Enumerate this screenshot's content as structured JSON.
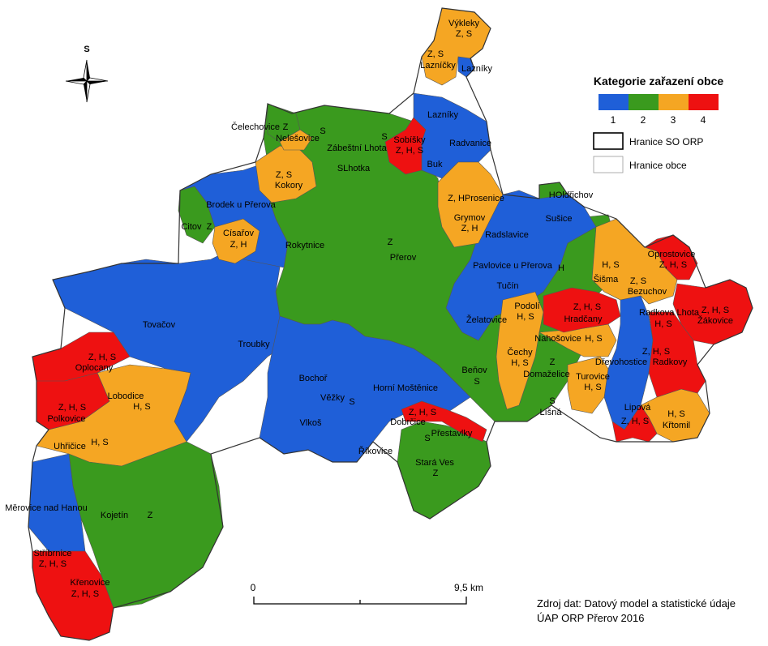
{
  "colors": {
    "cat1": "#1f5fd8",
    "cat2": "#3a9a1e",
    "cat3": "#f5a623",
    "cat4": "#ee1111",
    "border": "#555555"
  },
  "legend": {
    "title": "Kategorie zařazení obce",
    "categories": [
      "1",
      "2",
      "3",
      "4"
    ],
    "orp_boundary": "Hranice SO ORP",
    "municipality_boundary": "Hranice obce"
  },
  "north_arrow": {
    "label": "S",
    "icon": "compass-rose-icon"
  },
  "scale_bar": {
    "start": "0",
    "end": "9,5 km"
  },
  "source": {
    "line1": "Zdroj dat: Datový model a statistické údaje",
    "line2": "ÚAP ORP Přerov 2016"
  },
  "labels": {
    "vykleky": "Výkleky",
    "vykleky_code": "Z, S",
    "laznicky_code": "Z, S",
    "laznicky": "Lazníčky",
    "lazniky_top": "Lazníky",
    "lazniky": "Lazníky",
    "celechovice": "Čelechovice",
    "celechovice_code": "Z",
    "nelesovice": "Nelešovice",
    "nelesovice_code": "S",
    "zabestni": "Zábeštní Lhota",
    "zabestni_code": "S",
    "sobisky": "Sobíšky",
    "sobisky_code": "Z, H, S",
    "radvanice": "Radvanice",
    "buk": "Buk",
    "kokory_code": "Z, S",
    "kokory": "Kokory",
    "slhotka": "SLhotka",
    "prosenice": "Z, HProsenice",
    "olbrichov": "HOldřichov",
    "brodek": "Brodek u Přerova",
    "citov": "Citov",
    "citov_code": "Z",
    "grymov": "Grymov",
    "grymov_code": "Z, H",
    "susice": "Sušice",
    "radslavice": "Radslavice",
    "cisarov": "Císařov",
    "cisarov_code": "Z, H",
    "rokytnice": "Rokytnice",
    "prerov_code": "Z",
    "prerov": "Přerov",
    "pavlovice": "Pavlovice u Přerova",
    "pavlovice_code": "H",
    "oprostovice": "Oprostovice",
    "oprostovice_code": "Z, H, S",
    "sisma_code": "H, S",
    "sisma": "Šišma",
    "bezuchov_code": "Z, S",
    "bezuchov": "Bezuchov",
    "tucin": "Tučín",
    "tovacov": "Tovačov",
    "podoli": "Podolí",
    "podoli_code": "H, S",
    "hradcany_code": "Z, H, S",
    "hradcany": "Hradčany",
    "radkova_lhota": "Radkova Lhota",
    "radkova_lhota_code": "H, S",
    "zakovice_code": "Z, H, S",
    "zakovice": "Žákovice",
    "zelatovice": "Želatovice",
    "nahosovice": "Nahošovice",
    "nahosovice_code": "H, S",
    "troubky": "Troubky",
    "cechy": "Čechy",
    "cechy_code": "H, S",
    "domazelice_code": "Z",
    "domazelice": "Domaželice",
    "drevohostice": "Dřevohostice",
    "radkovy_code": "Z, H, S",
    "radkovy": "Radkovy",
    "oplocany_code": "Z, H, S",
    "oplocany": "Oplocany",
    "bochor": "Bochoř",
    "benov": "Beňov",
    "benov_code": "S",
    "turovice": "Turovice",
    "turovice_code": "H, S",
    "lobodice": "Lobodice",
    "lobodice_code": "H, S",
    "horni_mostenice": "Horní Moštěnice",
    "vezky": "Věžky",
    "vezky_code": "S",
    "lisna_code": "S",
    "lisna": "Líšná",
    "lipova": "Lipová",
    "lipova_code": "Z, H, S",
    "krtomil_code": "H, S",
    "krtomil": "Křtomil",
    "polkovice_code": "Z, H, S",
    "polkovice": "Polkovice",
    "dobrcice_code": "Z, H, S",
    "dobrcice": "Dobrčice",
    "vlkos": "Vlkoš",
    "prestavlky": "Přestavlky",
    "prestavlky_code": "S",
    "uhricice": "Uhřičice",
    "uhricice_code": "H, S",
    "rikovice": "Říkovice",
    "stara_ves": "Stará Ves",
    "stara_ves_code": "Z",
    "merovice": "Měrovice nad Hanou",
    "kojetin": "Kojetín",
    "kojetin_code": "Z",
    "stribrnice": "Stříbrnice",
    "stribrnice_code": "Z, H, S",
    "krenovice": "Křenovice",
    "krenovice_code": "Z, H, S"
  }
}
